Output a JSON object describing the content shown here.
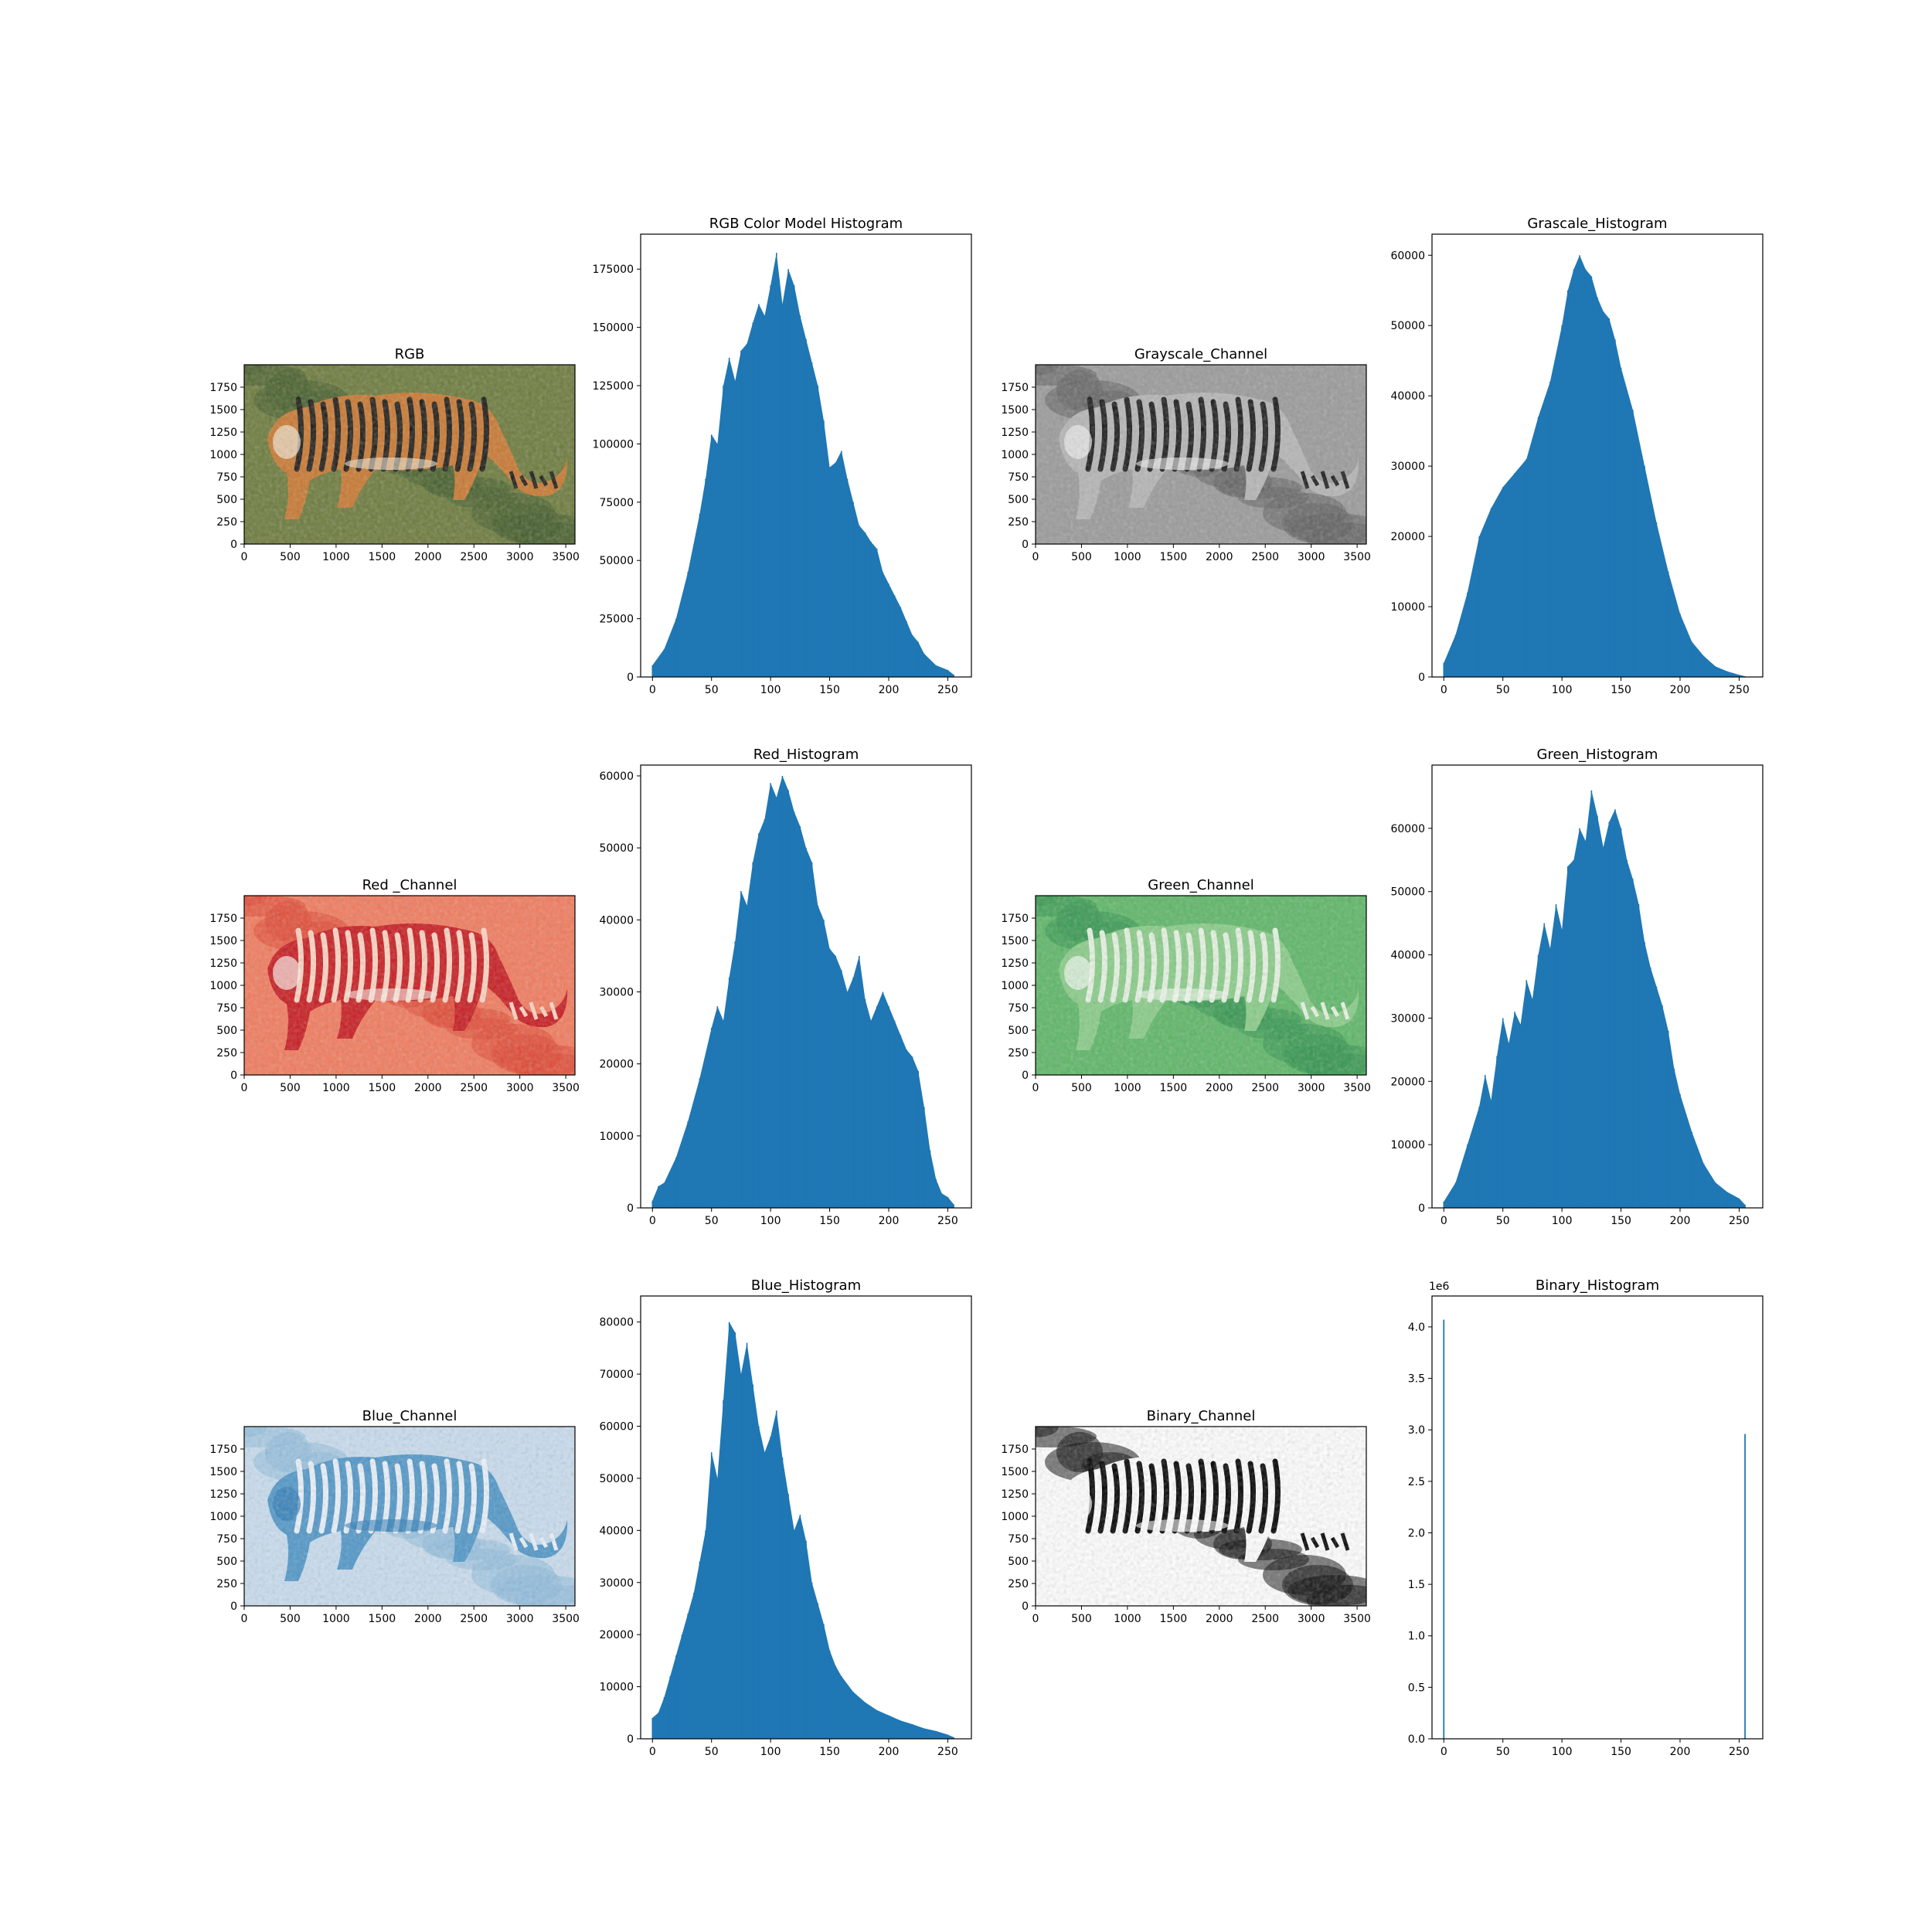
{
  "figure": {
    "background": "#ffffff",
    "bar_color": "#1f77b4"
  },
  "chart_data": [
    {
      "type": "image",
      "title": "RGB",
      "colormap": "natural",
      "xlim": [
        0,
        3600
      ],
      "ylim": [
        2000,
        0
      ],
      "xticks": [
        0,
        500,
        1000,
        1500,
        2000,
        2500,
        3000,
        3500
      ],
      "yticks": [
        0,
        250,
        500,
        750,
        1000,
        1250,
        1500,
        1750
      ]
    },
    {
      "type": "bar",
      "title": "RGB Color Model Histogram",
      "xlim": [
        -10,
        270
      ],
      "ylim": [
        0,
        190000
      ],
      "xticks": [
        0,
        50,
        100,
        150,
        200,
        250
      ],
      "yticks": [
        0,
        25000,
        50000,
        75000,
        100000,
        125000,
        150000,
        175000
      ],
      "y_offset_label": "",
      "x": [
        0,
        10,
        20,
        30,
        40,
        45,
        50,
        55,
        60,
        65,
        70,
        75,
        80,
        85,
        90,
        95,
        100,
        105,
        110,
        115,
        120,
        125,
        130,
        135,
        140,
        145,
        150,
        155,
        160,
        165,
        170,
        175,
        180,
        185,
        190,
        195,
        200,
        205,
        210,
        215,
        220,
        225,
        230,
        240,
        250,
        255
      ],
      "values": [
        5000,
        12000,
        25000,
        45000,
        70000,
        85000,
        104000,
        100000,
        125000,
        137000,
        127000,
        140000,
        143000,
        152000,
        160000,
        155000,
        168000,
        182000,
        160000,
        175000,
        168000,
        155000,
        145000,
        135000,
        125000,
        110000,
        90000,
        92000,
        97000,
        85000,
        75000,
        65000,
        62000,
        58000,
        55000,
        45000,
        40000,
        35000,
        30000,
        24000,
        18000,
        15000,
        10000,
        5000,
        3000,
        1000
      ]
    },
    {
      "type": "image",
      "title": "Grayscale_Channel",
      "colormap": "gray",
      "xlim": [
        0,
        3600
      ],
      "ylim": [
        2000,
        0
      ],
      "xticks": [
        0,
        500,
        1000,
        1500,
        2000,
        2500,
        3000,
        3500
      ],
      "yticks": [
        0,
        250,
        500,
        750,
        1000,
        1250,
        1500,
        1750
      ]
    },
    {
      "type": "bar",
      "title": "Grascale_Histogram",
      "xlim": [
        -10,
        270
      ],
      "ylim": [
        0,
        63000
      ],
      "xticks": [
        0,
        50,
        100,
        150,
        200,
        250
      ],
      "yticks": [
        0,
        10000,
        20000,
        30000,
        40000,
        50000,
        60000
      ],
      "y_offset_label": "",
      "x": [
        0,
        10,
        20,
        30,
        40,
        50,
        60,
        70,
        80,
        90,
        100,
        105,
        110,
        115,
        120,
        125,
        130,
        135,
        140,
        145,
        150,
        160,
        170,
        180,
        190,
        200,
        210,
        220,
        230,
        240,
        250,
        255
      ],
      "values": [
        2000,
        6000,
        12000,
        20000,
        24000,
        27000,
        29000,
        31000,
        37000,
        42000,
        50000,
        55000,
        58000,
        60000,
        58000,
        57000,
        54000,
        52000,
        51000,
        48000,
        44000,
        38000,
        30000,
        22000,
        15000,
        9000,
        5000,
        3000,
        1500,
        800,
        300,
        100
      ]
    },
    {
      "type": "image",
      "title": "Red _Channel",
      "colormap": "Reds",
      "xlim": [
        0,
        3600
      ],
      "ylim": [
        2000,
        0
      ],
      "xticks": [
        0,
        500,
        1000,
        1500,
        2000,
        2500,
        3000,
        3500
      ],
      "yticks": [
        0,
        250,
        500,
        750,
        1000,
        1250,
        1500,
        1750
      ]
    },
    {
      "type": "bar",
      "title": "Red_Histogram",
      "xlim": [
        -10,
        270
      ],
      "ylim": [
        0,
        61500
      ],
      "xticks": [
        0,
        50,
        100,
        150,
        200,
        250
      ],
      "yticks": [
        0,
        10000,
        20000,
        30000,
        40000,
        50000,
        60000
      ],
      "y_offset_label": "",
      "x": [
        0,
        5,
        10,
        20,
        30,
        40,
        50,
        55,
        60,
        65,
        70,
        75,
        80,
        85,
        90,
        95,
        100,
        105,
        110,
        115,
        120,
        125,
        130,
        135,
        140,
        145,
        150,
        155,
        160,
        165,
        170,
        175,
        180,
        185,
        190,
        195,
        200,
        205,
        210,
        215,
        220,
        225,
        230,
        235,
        240,
        245,
        250,
        255
      ],
      "values": [
        1000,
        3000,
        3500,
        7000,
        12000,
        18000,
        25000,
        28000,
        26000,
        32000,
        37000,
        44000,
        42000,
        48000,
        52000,
        54000,
        59000,
        57000,
        60000,
        58000,
        55000,
        53000,
        50000,
        48000,
        42000,
        40000,
        36000,
        35000,
        33000,
        30000,
        32000,
        35000,
        29000,
        26000,
        28000,
        30000,
        28000,
        26000,
        24000,
        22000,
        21000,
        19000,
        14000,
        8000,
        4000,
        2000,
        1500,
        500
      ]
    },
    {
      "type": "image",
      "title": "Green_Channel",
      "colormap": "Greens",
      "xlim": [
        0,
        3600
      ],
      "ylim": [
        2000,
        0
      ],
      "xticks": [
        0,
        500,
        1000,
        1500,
        2000,
        2500,
        3000,
        3500
      ],
      "yticks": [
        0,
        250,
        500,
        750,
        1000,
        1250,
        1500,
        1750
      ]
    },
    {
      "type": "bar",
      "title": "Green_Histogram",
      "xlim": [
        -10,
        270
      ],
      "ylim": [
        0,
        70000
      ],
      "xticks": [
        0,
        50,
        100,
        150,
        200,
        250
      ],
      "yticks": [
        0,
        10000,
        20000,
        30000,
        40000,
        50000,
        60000
      ],
      "y_offset_label": "",
      "x": [
        0,
        10,
        20,
        30,
        35,
        40,
        45,
        50,
        55,
        60,
        65,
        70,
        75,
        80,
        85,
        90,
        95,
        100,
        105,
        110,
        115,
        120,
        125,
        130,
        135,
        140,
        145,
        150,
        155,
        160,
        165,
        170,
        175,
        180,
        185,
        190,
        195,
        200,
        210,
        220,
        230,
        240,
        250,
        255
      ],
      "values": [
        1000,
        4000,
        10000,
        16000,
        21000,
        17000,
        24000,
        30000,
        26000,
        31000,
        29000,
        36000,
        33000,
        40000,
        45000,
        41000,
        48000,
        44000,
        54000,
        55000,
        60000,
        58000,
        66000,
        62000,
        57000,
        61000,
        63000,
        60000,
        55000,
        52000,
        48000,
        42000,
        38000,
        35000,
        32000,
        28000,
        22000,
        18000,
        12000,
        7000,
        4000,
        2500,
        1500,
        500
      ]
    },
    {
      "type": "image",
      "title": "Blue_Channel",
      "colormap": "Blues",
      "xlim": [
        0,
        3600
      ],
      "ylim": [
        2000,
        0
      ],
      "xticks": [
        0,
        500,
        1000,
        1500,
        2000,
        2500,
        3000,
        3500
      ],
      "yticks": [
        0,
        250,
        500,
        750,
        1000,
        1250,
        1500,
        1750
      ]
    },
    {
      "type": "bar",
      "title": "Blue_Histogram",
      "xlim": [
        -10,
        270
      ],
      "ylim": [
        0,
        85000
      ],
      "xticks": [
        0,
        50,
        100,
        150,
        200,
        250
      ],
      "yticks": [
        0,
        10000,
        20000,
        30000,
        40000,
        50000,
        60000,
        70000,
        80000
      ],
      "y_offset_label": "",
      "x": [
        0,
        5,
        10,
        15,
        20,
        25,
        30,
        35,
        40,
        45,
        50,
        55,
        60,
        65,
        70,
        75,
        80,
        85,
        90,
        95,
        100,
        105,
        110,
        115,
        120,
        125,
        130,
        135,
        140,
        145,
        150,
        155,
        160,
        170,
        180,
        190,
        200,
        210,
        220,
        230,
        240,
        250,
        255
      ],
      "values": [
        4000,
        5000,
        8000,
        12000,
        16000,
        20000,
        24000,
        28000,
        34000,
        40000,
        55000,
        50000,
        65000,
        80000,
        78000,
        70000,
        76000,
        68000,
        60000,
        55000,
        58000,
        63000,
        54000,
        47000,
        40000,
        43000,
        38000,
        30000,
        26000,
        22000,
        17000,
        14000,
        12000,
        9000,
        7000,
        5500,
        4500,
        3500,
        2800,
        2000,
        1500,
        800,
        300
      ]
    },
    {
      "type": "image",
      "title": "Binary_Channel",
      "colormap": "binary",
      "xlim": [
        0,
        3600
      ],
      "ylim": [
        2000,
        0
      ],
      "xticks": [
        0,
        500,
        1000,
        1500,
        2000,
        2500,
        3000,
        3500
      ],
      "yticks": [
        0,
        250,
        500,
        750,
        1000,
        1250,
        1500,
        1750
      ]
    },
    {
      "type": "bar",
      "title": "Binary_Histogram",
      "xlim": [
        -10,
        270
      ],
      "ylim": [
        0,
        4300000
      ],
      "xticks": [
        0,
        50,
        100,
        150,
        200,
        250
      ],
      "yticks": [
        0,
        500000,
        1000000,
        1500000,
        2000000,
        2500000,
        3000000,
        3500000,
        4000000
      ],
      "ytick_labels": [
        "0.0",
        "0.5",
        "1.0",
        "1.5",
        "2.0",
        "2.5",
        "3.0",
        "3.5",
        "4.0"
      ],
      "y_offset_label": "1e6",
      "x": [
        0,
        255
      ],
      "values": [
        4070000,
        2960000
      ]
    }
  ]
}
